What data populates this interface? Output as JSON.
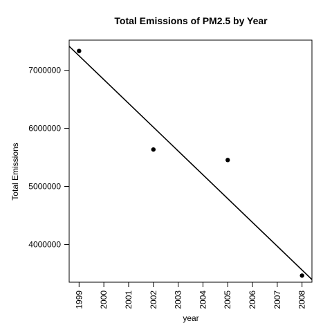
{
  "chart_data": {
    "type": "scatter",
    "title": "Total Emissions of PM2.5 by Year",
    "xlabel": "year",
    "ylabel": "Total Emissions",
    "xlim": [
      1998.6,
      2008.4
    ],
    "ylim": [
      3350000,
      7520000
    ],
    "x_ticks": [
      1999,
      2000,
      2001,
      2002,
      2003,
      2004,
      2005,
      2006,
      2007,
      2008
    ],
    "x_tick_labels": [
      "1999",
      "2000",
      "2001",
      "2002",
      "2003",
      "2004",
      "2005",
      "2006",
      "2007",
      "2008"
    ],
    "y_ticks": [
      4000000,
      5000000,
      6000000,
      7000000
    ],
    "y_tick_labels": [
      "4000000",
      "5000000",
      "6000000",
      "7000000"
    ],
    "points": [
      {
        "x": 1999,
        "y": 7332967
      },
      {
        "x": 2002,
        "y": 5635780
      },
      {
        "x": 2005,
        "y": 5454703
      },
      {
        "x": 2008,
        "y": 3464206
      }
    ],
    "fit_line": {
      "intercept": 7250000,
      "slope": -410000,
      "x0": 1999
    },
    "grid": false,
    "legend": "none"
  }
}
